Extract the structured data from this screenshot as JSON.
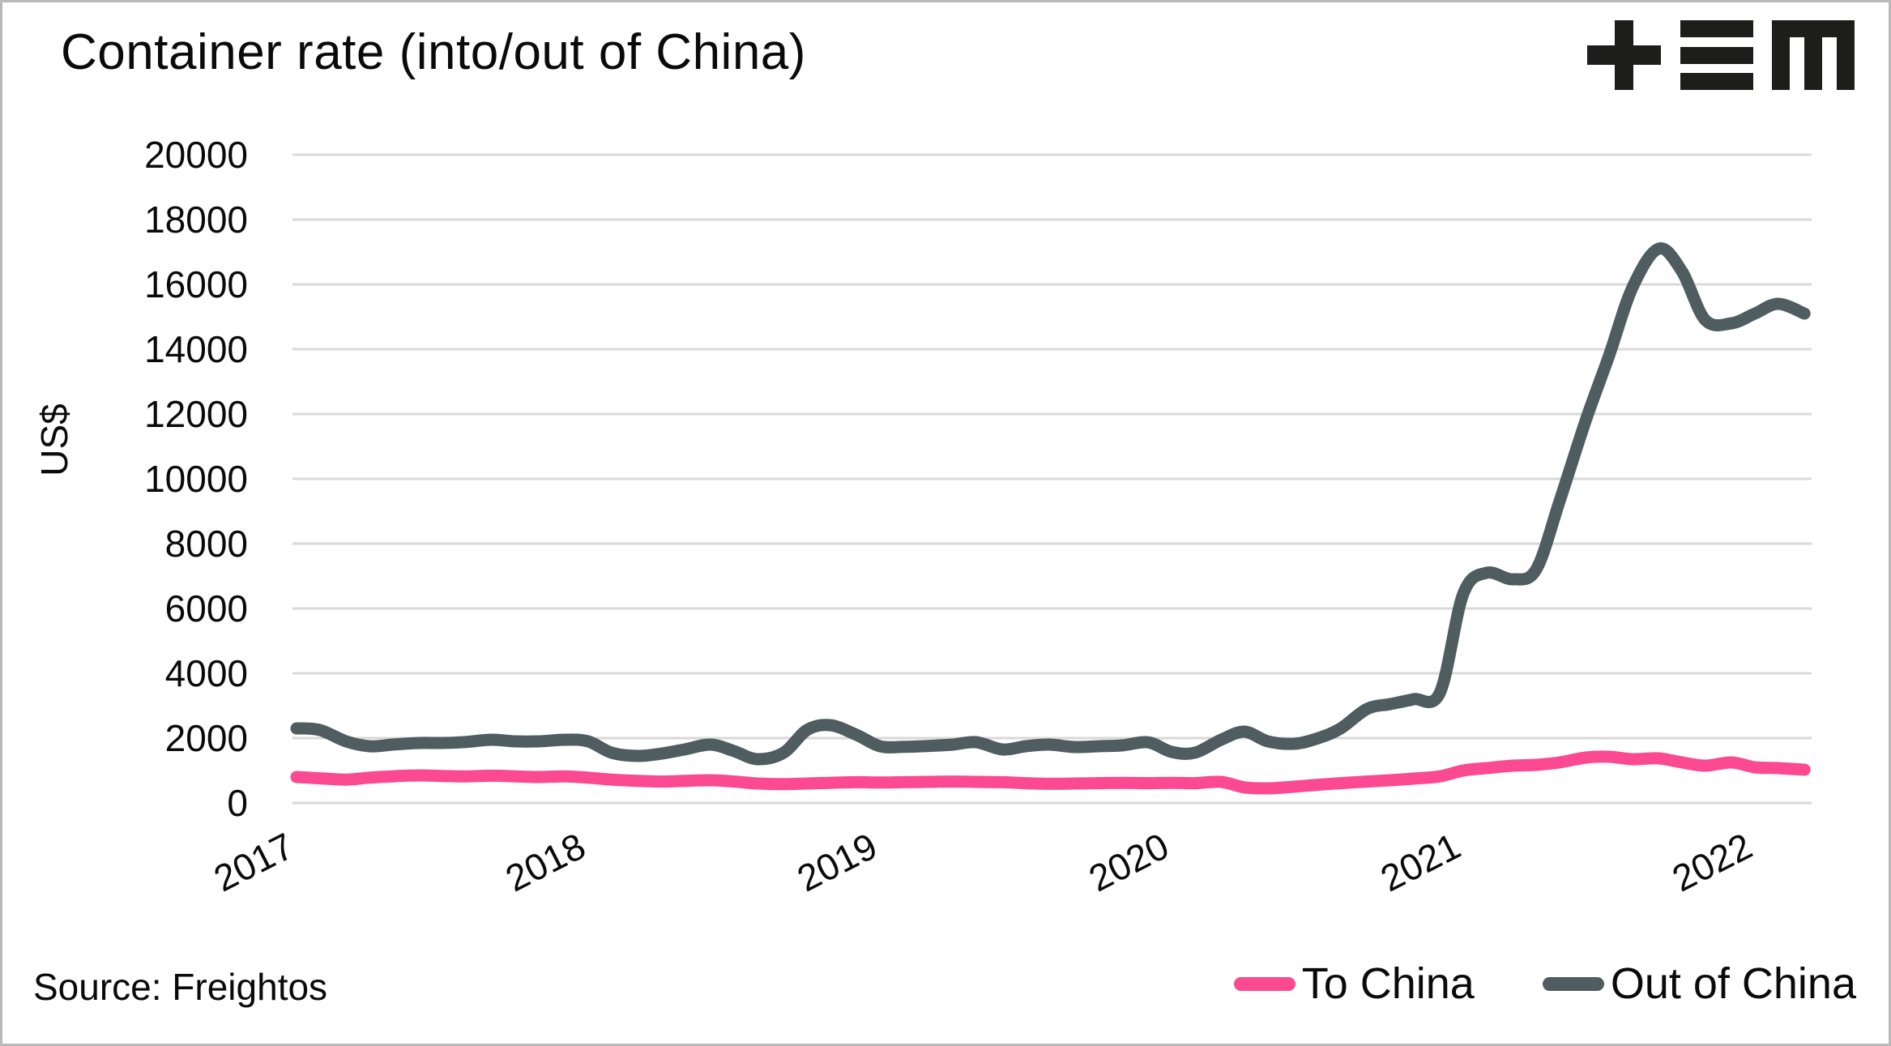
{
  "header": {
    "title": "Container rate (into/out of China)",
    "logo": "plus-triple-bar-m-logo"
  },
  "footer": {
    "source": "Source: Freightos"
  },
  "colors": {
    "to_china": "#fb4a92",
    "out_of_china": "#4f5d60",
    "gridline": "#d9d9d9",
    "text": "#0a0a0a",
    "logo": "#1d1d1b",
    "background": "#ffffff"
  },
  "legend": {
    "items": [
      {
        "label": "To China",
        "color": "#fb4a92"
      },
      {
        "label": "Out of China",
        "color": "#4f5d60"
      }
    ]
  },
  "chart_data": {
    "type": "line",
    "title": "Container rate (into/out of China)",
    "xlabel": "",
    "ylabel": "US$",
    "ylim": [
      0,
      20000
    ],
    "yticks": [
      0,
      2000,
      4000,
      6000,
      8000,
      10000,
      12000,
      14000,
      16000,
      18000,
      20000
    ],
    "xticks": [
      2017,
      2018,
      2019,
      2020,
      2021,
      2022
    ],
    "grid": "horizontal",
    "legend_position": "bottom-right",
    "source": "Source: Freightos",
    "x_unit": "decimal year",
    "x": [
      2017.0,
      2017.08,
      2017.17,
      2017.25,
      2017.33,
      2017.42,
      2017.5,
      2017.58,
      2017.67,
      2017.75,
      2017.83,
      2017.92,
      2018.0,
      2018.08,
      2018.17,
      2018.25,
      2018.33,
      2018.42,
      2018.5,
      2018.58,
      2018.67,
      2018.75,
      2018.83,
      2018.92,
      2019.0,
      2019.08,
      2019.17,
      2019.25,
      2019.33,
      2019.42,
      2019.5,
      2019.58,
      2019.67,
      2019.75,
      2019.83,
      2019.92,
      2020.0,
      2020.08,
      2020.17,
      2020.25,
      2020.33,
      2020.42,
      2020.5,
      2020.58,
      2020.67,
      2020.75,
      2020.83,
      2020.92,
      2021.0,
      2021.08,
      2021.17,
      2021.25,
      2021.33,
      2021.42,
      2021.5,
      2021.58,
      2021.67,
      2021.75,
      2021.83,
      2021.92,
      2022.0,
      2022.08,
      2022.17
    ],
    "series": [
      {
        "name": "To China",
        "color": "#fb4a92",
        "values": [
          800,
          760,
          720,
          780,
          820,
          850,
          830,
          820,
          840,
          820,
          800,
          820,
          780,
          720,
          680,
          660,
          680,
          700,
          660,
          600,
          580,
          600,
          620,
          640,
          630,
          640,
          650,
          660,
          650,
          640,
          610,
          590,
          600,
          610,
          620,
          610,
          620,
          610,
          650,
          480,
          450,
          500,
          560,
          610,
          660,
          700,
          750,
          820,
          1000,
          1075,
          1150,
          1175,
          1250,
          1400,
          1425,
          1350,
          1375,
          1250,
          1150,
          1250,
          1100,
          1075,
          1025
        ]
      },
      {
        "name": "Out of China",
        "color": "#4f5d60",
        "values": [
          2300,
          2250,
          1900,
          1750,
          1800,
          1850,
          1850,
          1880,
          1950,
          1900,
          1900,
          1950,
          1900,
          1550,
          1450,
          1520,
          1650,
          1800,
          1600,
          1350,
          1550,
          2250,
          2400,
          2100,
          1750,
          1730,
          1760,
          1800,
          1875,
          1650,
          1750,
          1800,
          1725,
          1750,
          1775,
          1870,
          1575,
          1550,
          1950,
          2200,
          1900,
          1825,
          1990,
          2300,
          2900,
          3050,
          3200,
          3400,
          6450,
          7100,
          6900,
          7200,
          9300,
          11800,
          13800,
          15900,
          17100,
          16400,
          14900,
          14800,
          15100,
          15400,
          15100
        ]
      }
    ]
  }
}
